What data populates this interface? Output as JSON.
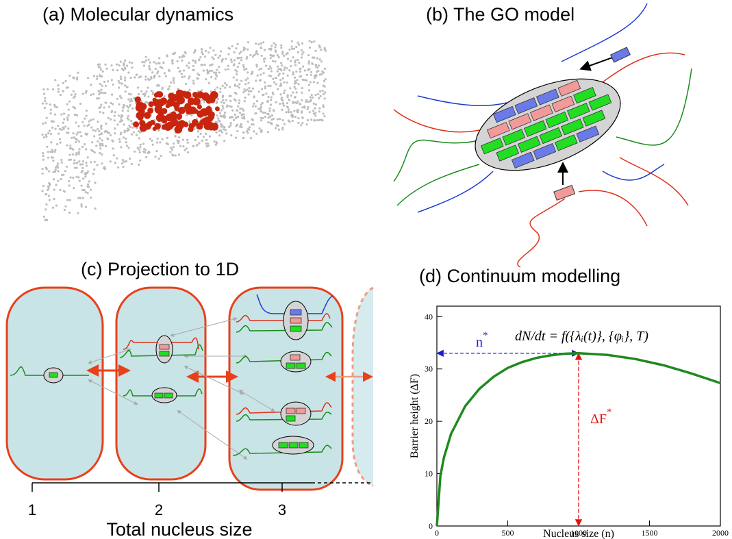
{
  "panels": {
    "a": {
      "title": "(a) Molecular dynamics"
    },
    "b": {
      "title": "(b) The GO model"
    },
    "c": {
      "title": "(c) Projection to 1D",
      "axis_ticks": [
        "1",
        "2",
        "3"
      ],
      "axis_label": "Total nucleus size"
    }
  },
  "chart_data": {
    "type": "line",
    "title": "(d) Continuum modelling",
    "x_label": "Nucleus size (n)",
    "y_label": "Barrier height (ΔF)",
    "x": [
      0,
      25,
      50,
      100,
      200,
      300,
      400,
      500,
      600,
      700,
      800,
      900,
      1000,
      1200,
      1400,
      1600,
      1800,
      2000
    ],
    "series": [
      {
        "color": "#1e8a1e",
        "values": [
          0,
          9.6,
          13.1,
          17.6,
          22.9,
          26.2,
          28.5,
          30.2,
          31.3,
          32.1,
          32.6,
          32.9,
          33.0,
          32.7,
          31.9,
          30.7,
          29.1,
          27.3
        ]
      }
    ],
    "xlim": [
      0,
      2000
    ],
    "ylim": [
      0,
      42
    ],
    "xticks": [
      0,
      500,
      1000,
      1500,
      2000
    ],
    "yticks": [
      0,
      10,
      20,
      30,
      40
    ],
    "annotations": {
      "n_star": {
        "text": "n",
        "sup": "*",
        "x": 1000,
        "y": 33,
        "color": "#1a1ad0"
      },
      "dF_star": {
        "text": "ΔF",
        "sup": "*",
        "x": 1000,
        "y": 33,
        "color": "#e01010"
      },
      "equation": "dN/dt = f({λᵢ(t)}, {φᵢ}, T)"
    }
  }
}
